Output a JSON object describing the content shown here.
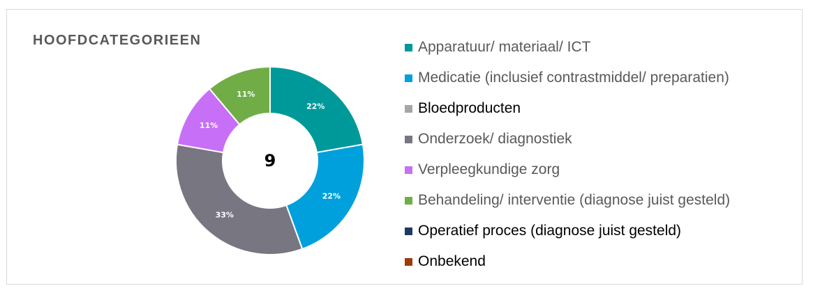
{
  "chart_data": {
    "type": "pie",
    "title": "HOOFDCATEGORIEEN",
    "center_label": "9",
    "slices": [
      {
        "label": "Apparatuur/ materiaal/ ICT",
        "value": 2,
        "percent_label": "22%",
        "color": "#009999",
        "legend_text_color": "#595959"
      },
      {
        "label": "Medicatie (inclusief contrastmiddel/ preparatien)",
        "value": 2,
        "percent_label": "22%",
        "color": "#00a0dd",
        "legend_text_color": "#595959"
      },
      {
        "label": "Bloedproducten",
        "value": 0,
        "percent_label": "",
        "color": "#a6a6a6",
        "legend_text_color": "#000000"
      },
      {
        "label": "Onderzoek/ diagnostiek",
        "value": 3,
        "percent_label": "33%",
        "color": "#777681",
        "legend_text_color": "#595959"
      },
      {
        "label": "Verpleegkundige zorg",
        "value": 1,
        "percent_label": "11%",
        "color": "#c76ff7",
        "legend_text_color": "#595959"
      },
      {
        "label": "Behandeling/ interventie (diagnose juist gesteld)",
        "value": 1,
        "percent_label": "11%",
        "color": "#70ad47",
        "legend_text_color": "#595959"
      },
      {
        "label": "Operatief proces (diagnose juist gesteld)",
        "value": 0,
        "percent_label": "",
        "color": "#1f3864",
        "legend_text_color": "#000000"
      },
      {
        "label": "Onbekend",
        "value": 0,
        "percent_label": "",
        "color": "#9e3c0a",
        "legend_text_color": "#000000"
      }
    ],
    "legend_position": "right"
  }
}
